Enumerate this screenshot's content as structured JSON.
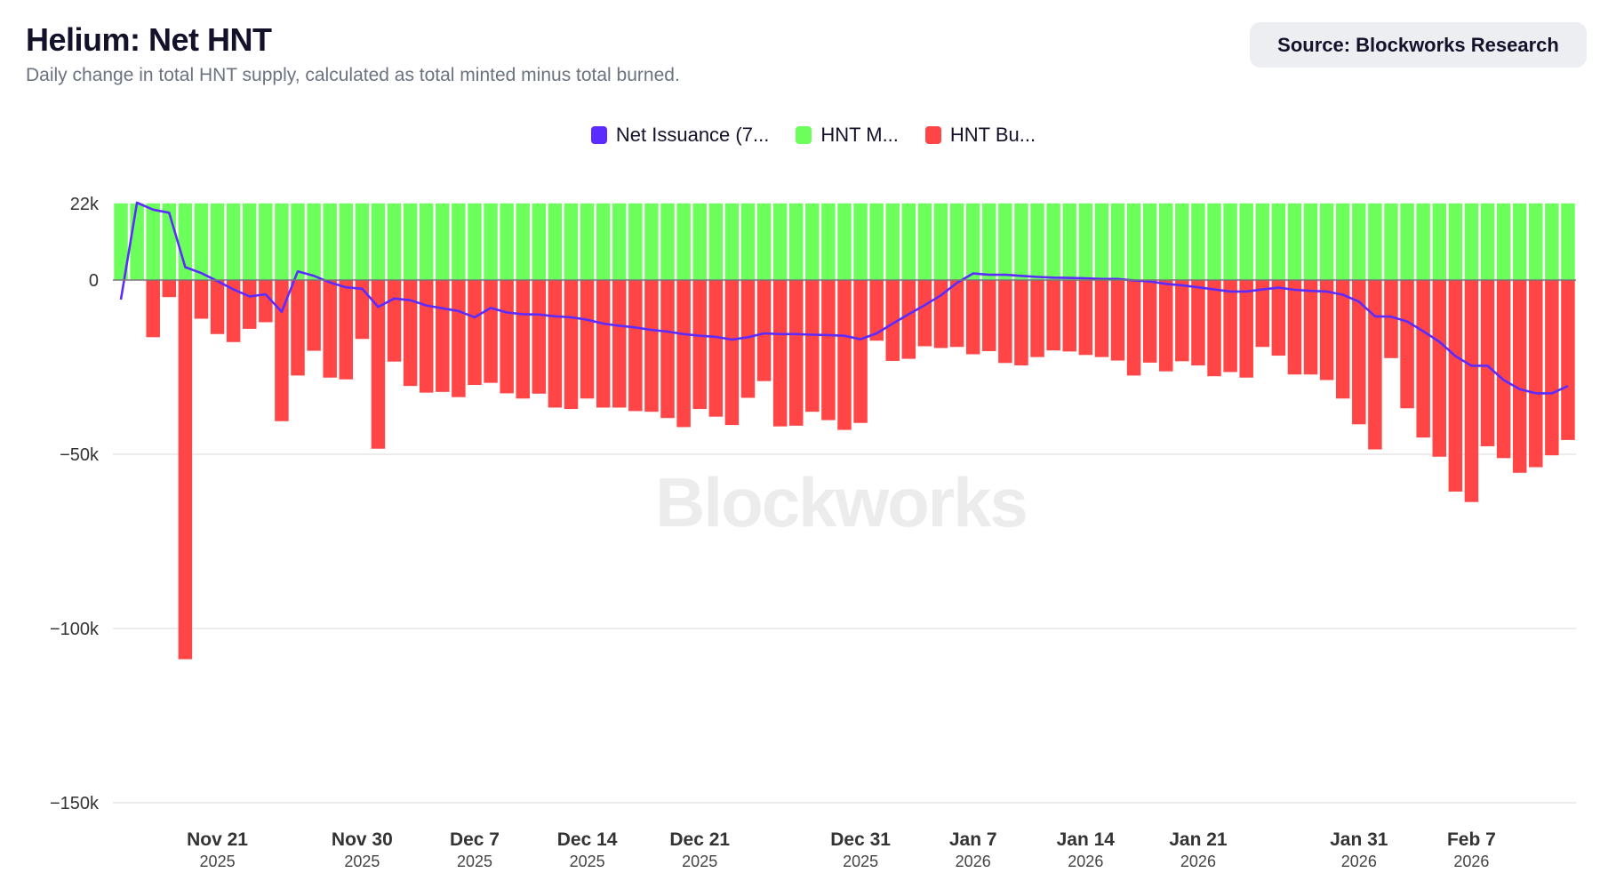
{
  "header": {
    "title": "Helium: Net HNT",
    "subtitle": "Daily change in total HNT supply, calculated as total minted minus total burned.",
    "source": "Source: Blockworks Research"
  },
  "watermark": "Blockworks",
  "chart_data": {
    "type": "bar",
    "stacked": true,
    "legend_position": "top",
    "grid": "horizontal",
    "ylim": [
      -150000,
      22000
    ],
    "y_ticks": [
      22000,
      0,
      -50000,
      -100000,
      -150000
    ],
    "y_tick_labels": [
      "22k",
      "0",
      "−50k",
      "−100k",
      "−150k"
    ],
    "x_tick_labels": [
      {
        "date": "2025-11-21",
        "label": "Nov 21",
        "year": "2025"
      },
      {
        "date": "2025-11-30",
        "label": "Nov 30",
        "year": "2025"
      },
      {
        "date": "2025-12-07",
        "label": "Dec 7",
        "year": "2025"
      },
      {
        "date": "2025-12-14",
        "label": "Dec 14",
        "year": "2025"
      },
      {
        "date": "2025-12-21",
        "label": "Dec 21",
        "year": "2025"
      },
      {
        "date": "2025-12-31",
        "label": "Dec 31",
        "year": "2025"
      },
      {
        "date": "2026-01-07",
        "label": "Jan 7",
        "year": "2026"
      },
      {
        "date": "2026-01-14",
        "label": "Jan 14",
        "year": "2026"
      },
      {
        "date": "2026-01-21",
        "label": "Jan 21",
        "year": "2026"
      },
      {
        "date": "2026-01-31",
        "label": "Jan 31",
        "year": "2026"
      },
      {
        "date": "2026-02-07",
        "label": "Feb 7",
        "year": "2026"
      }
    ],
    "x": [
      "2025-11-15",
      "2025-11-16",
      "2025-11-17",
      "2025-11-18",
      "2025-11-19",
      "2025-11-20",
      "2025-11-21",
      "2025-11-22",
      "2025-11-23",
      "2025-11-24",
      "2025-11-25",
      "2025-11-26",
      "2025-11-27",
      "2025-11-28",
      "2025-11-29",
      "2025-11-30",
      "2025-12-01",
      "2025-12-02",
      "2025-12-03",
      "2025-12-04",
      "2025-12-05",
      "2025-12-06",
      "2025-12-07",
      "2025-12-08",
      "2025-12-09",
      "2025-12-10",
      "2025-12-11",
      "2025-12-12",
      "2025-12-13",
      "2025-12-14",
      "2025-12-15",
      "2025-12-16",
      "2025-12-17",
      "2025-12-18",
      "2025-12-19",
      "2025-12-20",
      "2025-12-21",
      "2025-12-22",
      "2025-12-23",
      "2025-12-24",
      "2025-12-25",
      "2025-12-26",
      "2025-12-27",
      "2025-12-28",
      "2025-12-29",
      "2025-12-30",
      "2025-12-31",
      "2026-01-01",
      "2026-01-02",
      "2026-01-03",
      "2026-01-04",
      "2026-01-05",
      "2026-01-06",
      "2026-01-07",
      "2026-01-08",
      "2026-01-09",
      "2026-01-10",
      "2026-01-11",
      "2026-01-12",
      "2026-01-13",
      "2026-01-14",
      "2026-01-15",
      "2026-01-16",
      "2026-01-17",
      "2026-01-18",
      "2026-01-19",
      "2026-01-20",
      "2026-01-21",
      "2026-01-22",
      "2026-01-23",
      "2026-01-24",
      "2026-01-25",
      "2026-01-26",
      "2026-01-27",
      "2026-01-28",
      "2026-01-29",
      "2026-01-30",
      "2026-01-31",
      "2026-02-01",
      "2026-02-02",
      "2026-02-03",
      "2026-02-04",
      "2026-02-05",
      "2026-02-06",
      "2026-02-07",
      "2026-02-08",
      "2026-02-09",
      "2026-02-10",
      "2026-02-11",
      "2026-02-12",
      "2026-02-13"
    ],
    "series": [
      {
        "name": "Net Issuance (7...",
        "type": "line",
        "color": "#5b2bff",
        "values": [
          -5600,
          22200,
          20200,
          19300,
          3700,
          2000,
          -300,
          -2700,
          -4700,
          -4100,
          -9100,
          2500,
          1200,
          -700,
          -2100,
          -2500,
          -7700,
          -5300,
          -5800,
          -7300,
          -8100,
          -8900,
          -10700,
          -8000,
          -9300,
          -9800,
          -9900,
          -10400,
          -10700,
          -11400,
          -12500,
          -13100,
          -13600,
          -14300,
          -14800,
          -15500,
          -16000,
          -16300,
          -17100,
          -16400,
          -15300,
          -15500,
          -15500,
          -15700,
          -15800,
          -16000,
          -17000,
          -15300,
          -12500,
          -9800,
          -7200,
          -4400,
          -800,
          1900,
          1500,
          1500,
          1200,
          900,
          700,
          600,
          500,
          300,
          300,
          -100,
          -400,
          -1100,
          -1500,
          -2100,
          -2700,
          -3300,
          -3300,
          -2700,
          -2200,
          -2800,
          -3100,
          -3300,
          -4200,
          -6200,
          -10400,
          -10500,
          -11900,
          -14700,
          -17700,
          -21800,
          -24600,
          -24600,
          -28700,
          -31300,
          -32500,
          -32500,
          -30400
        ]
      },
      {
        "name": "HNT M...",
        "type": "bar",
        "color": "#6cff5c",
        "values": [
          22000,
          22000,
          22000,
          22000,
          22000,
          22000,
          22000,
          22000,
          22000,
          22000,
          22000,
          22000,
          22000,
          22000,
          22000,
          22000,
          22000,
          22000,
          22000,
          22000,
          22000,
          22000,
          22000,
          22000,
          22000,
          22000,
          22000,
          22000,
          22000,
          22000,
          22000,
          22000,
          22000,
          22000,
          22000,
          22000,
          22000,
          22000,
          22000,
          22000,
          22000,
          22000,
          22000,
          22000,
          22000,
          22000,
          22000,
          22000,
          22000,
          22000,
          22000,
          22000,
          22000,
          22000,
          22000,
          22000,
          22000,
          22000,
          22000,
          22000,
          22000,
          22000,
          22000,
          22000,
          22000,
          22000,
          22000,
          22000,
          22000,
          22000,
          22000,
          22000,
          22000,
          22000,
          22000,
          22000,
          22000,
          22000,
          22000,
          22000,
          22000,
          22000,
          22000,
          22000,
          22000,
          22000,
          22000,
          22000,
          22000,
          22000,
          22000
        ]
      },
      {
        "name": "HNT Bu...",
        "type": "bar",
        "color": "#ff4545",
        "values": [
          0,
          0,
          -16400,
          -4900,
          -108800,
          -11100,
          -15500,
          -17800,
          -14000,
          -12100,
          -40500,
          -27400,
          -20300,
          -28000,
          -28500,
          -16900,
          -48400,
          -23400,
          -30400,
          -32300,
          -32100,
          -33600,
          -30100,
          -29500,
          -32500,
          -34000,
          -32600,
          -36600,
          -37000,
          -34000,
          -36600,
          -36600,
          -37600,
          -37800,
          -39600,
          -42200,
          -37000,
          -39200,
          -41600,
          -33800,
          -29000,
          -42000,
          -41800,
          -37800,
          -40200,
          -43000,
          -41000,
          -17400,
          -23200,
          -22600,
          -19000,
          -19500,
          -19200,
          -21300,
          -20400,
          -23800,
          -24500,
          -22100,
          -20200,
          -20500,
          -21500,
          -22100,
          -23100,
          -27400,
          -23700,
          -26200,
          -23300,
          -24500,
          -27600,
          -26400,
          -28000,
          -19200,
          -21700,
          -27100,
          -27100,
          -28700,
          -34000,
          -41400,
          -48600,
          -22400,
          -36800,
          -45200,
          -50700,
          -60700,
          -63700,
          -47700,
          -51100,
          -55300,
          -53700,
          -50300,
          -45900
        ]
      }
    ]
  }
}
